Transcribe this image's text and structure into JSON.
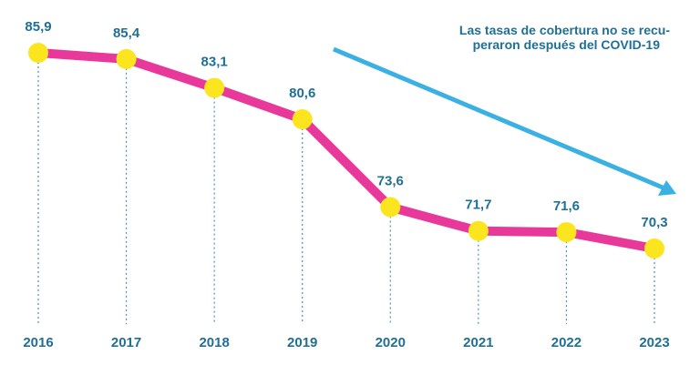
{
  "chart_data": {
    "type": "line",
    "categories": [
      "2016",
      "2017",
      "2018",
      "2019",
      "2020",
      "2021",
      "2022",
      "2023"
    ],
    "values": [
      85.9,
      85.4,
      83.1,
      80.6,
      73.6,
      71.7,
      71.6,
      70.3
    ],
    "value_labels": [
      "85,9",
      "85,4",
      "83,1",
      "80,6",
      "73,6",
      "71,7",
      "71,6",
      "70,3"
    ],
    "annotation": {
      "line1": "Las tasas de cobertura no se recu-",
      "line2": "peraron después del COVID-19"
    },
    "colors": {
      "line": "#e8399a",
      "marker": "#fbe51e",
      "drop": "#4a90c0",
      "text": "#1f6f96",
      "arrow": "#3bb0e3"
    },
    "title": "",
    "xlabel": "",
    "ylabel": ""
  }
}
